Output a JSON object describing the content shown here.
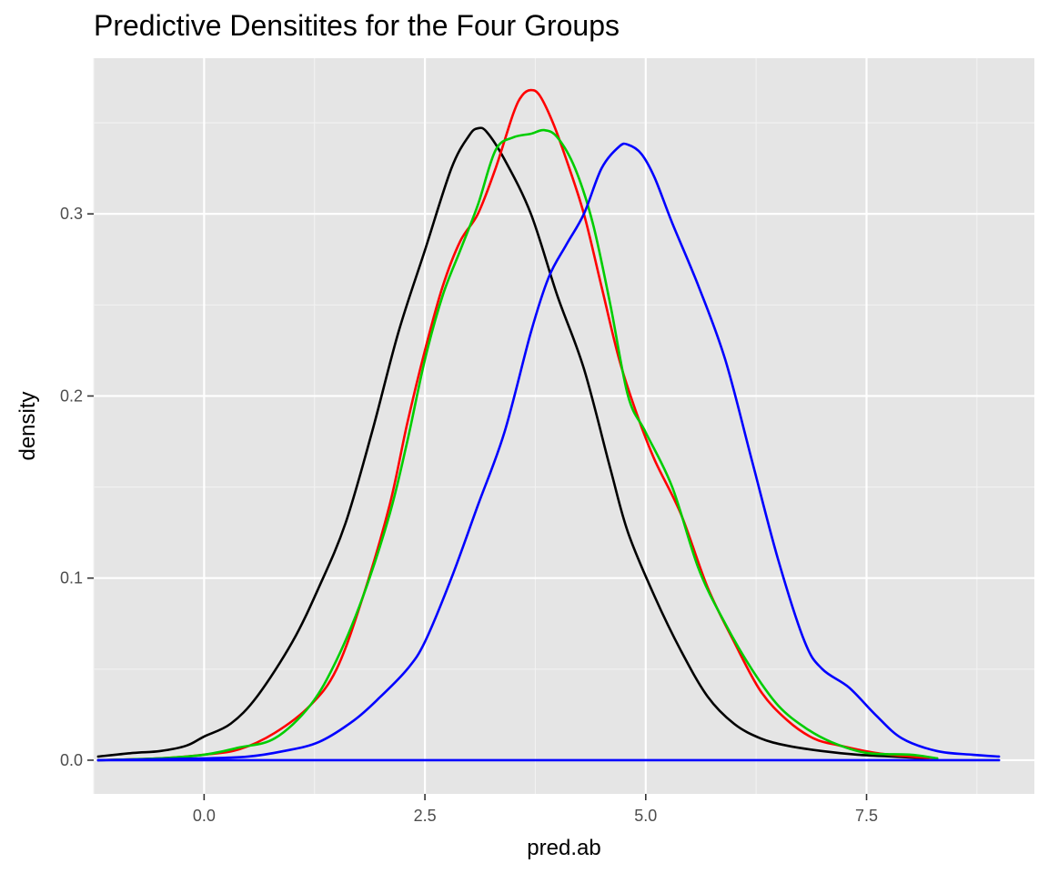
{
  "chart_data": {
    "type": "line",
    "title": "Predictive Densitites for the Four Groups",
    "xlabel": "pred.ab",
    "ylabel": "density",
    "xlim": [
      -1.25,
      9.4
    ],
    "ylim": [
      -0.0185,
      0.3855
    ],
    "x_ticks": [
      0.0,
      2.5,
      5.0,
      7.5
    ],
    "x_tick_labels": [
      "0.0",
      "2.5",
      "5.0",
      "7.5"
    ],
    "y_ticks": [
      0.0,
      0.1,
      0.2,
      0.3
    ],
    "y_tick_labels": [
      "0.0",
      "0.1",
      "0.2",
      "0.3"
    ],
    "grid": true,
    "legend": "none",
    "colors": {
      "panel": "#e5e5e5",
      "grid_major": "#ffffff",
      "grid_minor": "#f2f2f2"
    },
    "series": [
      {
        "color": "#000000",
        "points": [
          [
            -1.2,
            0.002
          ],
          [
            -0.8,
            0.004
          ],
          [
            -0.5,
            0.005
          ],
          [
            -0.2,
            0.008
          ],
          [
            0.0,
            0.013
          ],
          [
            0.3,
            0.02
          ],
          [
            0.6,
            0.035
          ],
          [
            1.0,
            0.065
          ],
          [
            1.3,
            0.095
          ],
          [
            1.6,
            0.13
          ],
          [
            1.9,
            0.18
          ],
          [
            2.2,
            0.235
          ],
          [
            2.5,
            0.28
          ],
          [
            2.8,
            0.325
          ],
          [
            3.0,
            0.343
          ],
          [
            3.1,
            0.347
          ],
          [
            3.2,
            0.345
          ],
          [
            3.4,
            0.33
          ],
          [
            3.7,
            0.3
          ],
          [
            4.0,
            0.255
          ],
          [
            4.3,
            0.215
          ],
          [
            4.6,
            0.16
          ],
          [
            4.8,
            0.125
          ],
          [
            5.1,
            0.09
          ],
          [
            5.4,
            0.06
          ],
          [
            5.7,
            0.035
          ],
          [
            6.0,
            0.02
          ],
          [
            6.3,
            0.012
          ],
          [
            6.6,
            0.008
          ],
          [
            7.0,
            0.005
          ],
          [
            7.4,
            0.003
          ],
          [
            7.8,
            0.002
          ],
          [
            8.2,
            0.001
          ]
        ]
      },
      {
        "color": "#ff0000",
        "points": [
          [
            -1.2,
            0.0
          ],
          [
            -0.5,
            0.001
          ],
          [
            0.0,
            0.003
          ],
          [
            0.4,
            0.006
          ],
          [
            0.8,
            0.015
          ],
          [
            1.2,
            0.03
          ],
          [
            1.5,
            0.05
          ],
          [
            1.8,
            0.09
          ],
          [
            2.1,
            0.14
          ],
          [
            2.3,
            0.185
          ],
          [
            2.5,
            0.225
          ],
          [
            2.7,
            0.26
          ],
          [
            2.9,
            0.285
          ],
          [
            3.1,
            0.3
          ],
          [
            3.3,
            0.325
          ],
          [
            3.5,
            0.355
          ],
          [
            3.6,
            0.365
          ],
          [
            3.7,
            0.368
          ],
          [
            3.8,
            0.365
          ],
          [
            3.95,
            0.35
          ],
          [
            4.1,
            0.33
          ],
          [
            4.3,
            0.3
          ],
          [
            4.5,
            0.26
          ],
          [
            4.7,
            0.22
          ],
          [
            4.9,
            0.19
          ],
          [
            5.1,
            0.165
          ],
          [
            5.4,
            0.135
          ],
          [
            5.7,
            0.095
          ],
          [
            6.0,
            0.065
          ],
          [
            6.3,
            0.038
          ],
          [
            6.6,
            0.022
          ],
          [
            6.9,
            0.012
          ],
          [
            7.2,
            0.008
          ],
          [
            7.6,
            0.004
          ],
          [
            8.0,
            0.002
          ],
          [
            8.3,
            0.001
          ]
        ]
      },
      {
        "color": "#00cd00",
        "points": [
          [
            -1.2,
            0.0
          ],
          [
            -0.5,
            0.001
          ],
          [
            0.0,
            0.003
          ],
          [
            0.4,
            0.007
          ],
          [
            0.8,
            0.012
          ],
          [
            1.2,
            0.03
          ],
          [
            1.5,
            0.055
          ],
          [
            1.8,
            0.09
          ],
          [
            2.1,
            0.135
          ],
          [
            2.3,
            0.175
          ],
          [
            2.5,
            0.22
          ],
          [
            2.7,
            0.255
          ],
          [
            2.9,
            0.28
          ],
          [
            3.1,
            0.305
          ],
          [
            3.3,
            0.335
          ],
          [
            3.5,
            0.342
          ],
          [
            3.7,
            0.344
          ],
          [
            3.85,
            0.346
          ],
          [
            4.0,
            0.342
          ],
          [
            4.2,
            0.325
          ],
          [
            4.4,
            0.295
          ],
          [
            4.6,
            0.25
          ],
          [
            4.8,
            0.2
          ],
          [
            5.0,
            0.18
          ],
          [
            5.3,
            0.15
          ],
          [
            5.6,
            0.105
          ],
          [
            5.9,
            0.075
          ],
          [
            6.2,
            0.05
          ],
          [
            6.5,
            0.03
          ],
          [
            6.8,
            0.018
          ],
          [
            7.1,
            0.01
          ],
          [
            7.5,
            0.004
          ],
          [
            8.0,
            0.003
          ],
          [
            8.3,
            0.001
          ]
        ]
      },
      {
        "color": "#0000ff",
        "points": [
          [
            -1.2,
            0.0
          ],
          [
            0.0,
            0.001
          ],
          [
            0.5,
            0.002
          ],
          [
            0.9,
            0.005
          ],
          [
            1.3,
            0.01
          ],
          [
            1.7,
            0.022
          ],
          [
            2.0,
            0.035
          ],
          [
            2.3,
            0.05
          ],
          [
            2.5,
            0.065
          ],
          [
            2.8,
            0.1
          ],
          [
            3.1,
            0.14
          ],
          [
            3.4,
            0.18
          ],
          [
            3.7,
            0.235
          ],
          [
            3.9,
            0.265
          ],
          [
            4.1,
            0.283
          ],
          [
            4.3,
            0.3
          ],
          [
            4.5,
            0.325
          ],
          [
            4.7,
            0.337
          ],
          [
            4.8,
            0.338
          ],
          [
            4.95,
            0.333
          ],
          [
            5.1,
            0.32
          ],
          [
            5.3,
            0.295
          ],
          [
            5.6,
            0.26
          ],
          [
            5.9,
            0.22
          ],
          [
            6.2,
            0.165
          ],
          [
            6.5,
            0.11
          ],
          [
            6.8,
            0.065
          ],
          [
            7.0,
            0.05
          ],
          [
            7.3,
            0.04
          ],
          [
            7.6,
            0.025
          ],
          [
            7.9,
            0.012
          ],
          [
            8.3,
            0.005
          ],
          [
            8.7,
            0.003
          ],
          [
            9.0,
            0.002
          ]
        ]
      },
      {
        "color": "#0000ff",
        "points": [
          [
            -1.2,
            0.0
          ],
          [
            9.0,
            0.0
          ]
        ]
      }
    ]
  }
}
